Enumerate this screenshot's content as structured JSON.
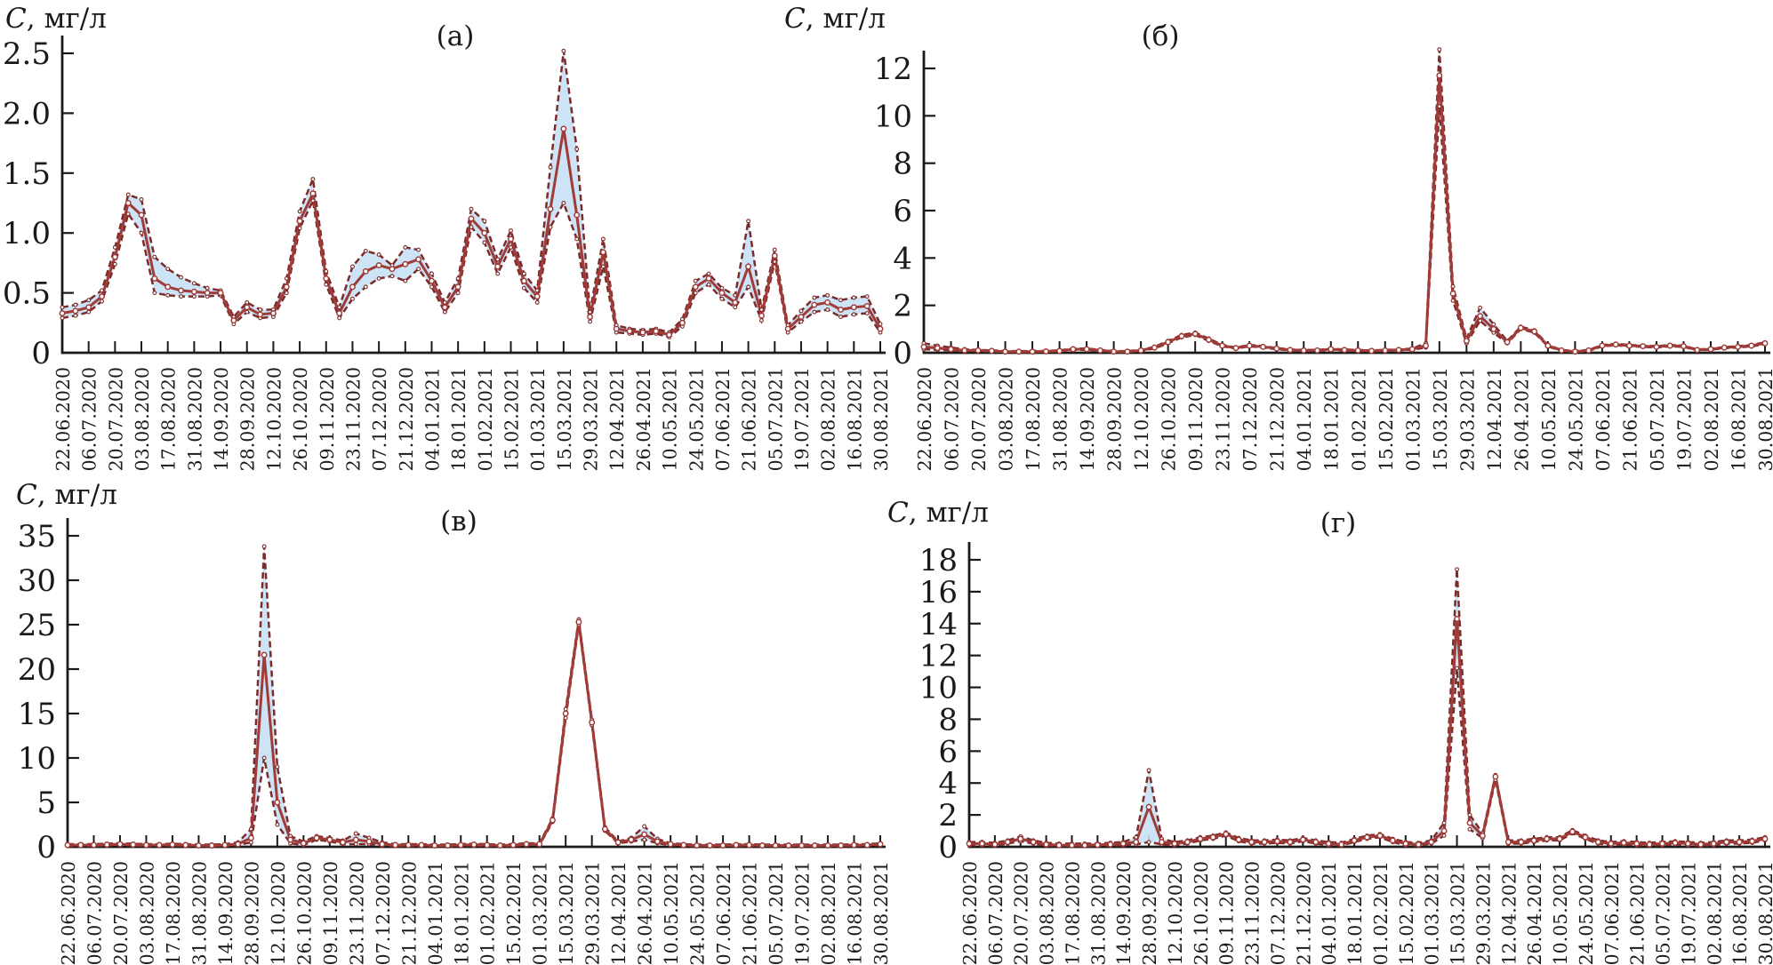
{
  "figure": {
    "ylabel_symbol": "C",
    "ylabel_unit": ", мг/л",
    "colors": {
      "line": "#a03b38",
      "bound": "#7b2b29",
      "band_fill": "#c7e1f5",
      "axis": "#1a1a1a",
      "marker_fill": "#ffffff"
    },
    "x_note": "x axis: biweekly date ticks, data points sampled weekly between ticks"
  },
  "chart_data": [
    {
      "id": "a",
      "type": "line",
      "title": "(а)",
      "ylabel": "C, мг/л",
      "ylim": [
        0,
        2.6
      ],
      "y_ticks": [
        0,
        0.5,
        1,
        1.5,
        2,
        2.5
      ],
      "y_tick_labels": [
        "0",
        "0.5",
        "1.0",
        "1.5",
        "2.0",
        "2.5"
      ],
      "x_tick_labels": [
        "22.06.2020",
        "06.07.2020",
        "20.07.2020",
        "03.08.2020",
        "17.08.2020",
        "31.08.2020",
        "14.09.2020",
        "28.09.2020",
        "12.10.2020",
        "26.10.2020",
        "09.11.2020",
        "23.11.2020",
        "07.12.2020",
        "21.12.2020",
        "04.01.2021",
        "18.01.2021",
        "01.02.2021",
        "15.02.2021",
        "01.03.2021",
        "15.03.2021",
        "29.03.2021",
        "12.04.2021",
        "26.04.2021",
        "10.05.2021",
        "24.05.2021",
        "07.06.2021",
        "21.06.2021",
        "05.07.2021",
        "19.07.2021",
        "02.08.2021",
        "16.08.2021",
        "30.08.2021"
      ],
      "series": [
        {
          "name": "model estimate",
          "values": [
            0.33,
            0.35,
            0.38,
            0.47,
            0.8,
            1.25,
            1.15,
            0.62,
            0.55,
            0.52,
            0.51,
            0.5,
            0.5,
            0.27,
            0.38,
            0.32,
            0.33,
            0.55,
            1.1,
            1.33,
            0.62,
            0.33,
            0.55,
            0.68,
            0.73,
            0.7,
            0.74,
            0.78,
            0.6,
            0.38,
            0.55,
            1.12,
            1.0,
            0.72,
            0.95,
            0.6,
            0.47,
            1.2,
            1.87,
            1.15,
            0.3,
            0.84,
            0.2,
            0.18,
            0.17,
            0.18,
            0.15,
            0.25,
            0.55,
            0.62,
            0.5,
            0.42,
            0.72,
            0.31,
            0.81,
            0.2,
            0.3,
            0.4,
            0.42,
            0.36,
            0.38,
            0.39,
            0.2
          ]
        },
        {
          "name": "upper bound (dashed)",
          "values": [
            0.38,
            0.4,
            0.44,
            0.52,
            0.88,
            1.32,
            1.28,
            0.8,
            0.7,
            0.63,
            0.58,
            0.54,
            0.52,
            0.3,
            0.42,
            0.36,
            0.36,
            0.62,
            1.18,
            1.45,
            0.68,
            0.38,
            0.72,
            0.85,
            0.82,
            0.73,
            0.88,
            0.86,
            0.66,
            0.42,
            0.62,
            1.2,
            1.1,
            0.78,
            1.02,
            0.66,
            0.52,
            1.55,
            2.52,
            1.7,
            0.34,
            0.95,
            0.23,
            0.2,
            0.19,
            0.2,
            0.17,
            0.28,
            0.6,
            0.66,
            0.54,
            0.48,
            1.1,
            0.36,
            0.86,
            0.23,
            0.35,
            0.46,
            0.48,
            0.44,
            0.46,
            0.47,
            0.24
          ]
        },
        {
          "name": "lower bound (dashed)",
          "values": [
            0.29,
            0.31,
            0.34,
            0.43,
            0.74,
            1.16,
            1.0,
            0.5,
            0.48,
            0.47,
            0.47,
            0.47,
            0.48,
            0.24,
            0.34,
            0.29,
            0.3,
            0.5,
            1.04,
            1.27,
            0.57,
            0.29,
            0.45,
            0.55,
            0.62,
            0.64,
            0.6,
            0.7,
            0.55,
            0.34,
            0.5,
            1.05,
            0.92,
            0.66,
            0.88,
            0.54,
            0.42,
            1.05,
            1.25,
            0.95,
            0.26,
            0.72,
            0.17,
            0.16,
            0.15,
            0.16,
            0.13,
            0.22,
            0.5,
            0.57,
            0.45,
            0.38,
            0.55,
            0.27,
            0.76,
            0.17,
            0.26,
            0.34,
            0.36,
            0.3,
            0.32,
            0.33,
            0.17
          ]
        }
      ]
    },
    {
      "id": "b",
      "type": "line",
      "title": "(б)",
      "ylabel": "C, мг/л",
      "ylim": [
        0,
        13
      ],
      "y_ticks": [
        0,
        2,
        4,
        6,
        8,
        10,
        12
      ],
      "y_tick_labels": [
        "0",
        "2",
        "4",
        "6",
        "8",
        "10",
        "12"
      ],
      "x_tick_labels": [
        "22.06.2020",
        "06.07.2020",
        "20.07.2020",
        "03.08.2020",
        "17.08.2020",
        "31.08.2020",
        "14.09.2020",
        "28.09.2020",
        "12.10.2020",
        "26.10.2020",
        "09.11.2020",
        "23.11.2020",
        "07.12.2020",
        "21.12.2020",
        "04.01.2021",
        "18.01.2021",
        "01.02.2021",
        "15.02.2021",
        "01.03.2021",
        "15.03.2021",
        "29.03.2021",
        "12.04.2021",
        "26.04.2021",
        "10.05.2021",
        "24.05.2021",
        "07.06.2021",
        "21.06.2021",
        "05.07.2021",
        "19.07.2021",
        "02.08.2021",
        "16.08.2021",
        "30.08.2021"
      ],
      "series": [
        {
          "name": "model estimate",
          "values": [
            0.25,
            0.2,
            0.15,
            0.1,
            0.1,
            0.08,
            0.05,
            0.05,
            0.05,
            0.06,
            0.08,
            0.15,
            0.15,
            0.1,
            0.05,
            0.05,
            0.1,
            0.22,
            0.45,
            0.7,
            0.8,
            0.55,
            0.3,
            0.2,
            0.3,
            0.25,
            0.18,
            0.12,
            0.1,
            0.1,
            0.15,
            0.12,
            0.1,
            0.08,
            0.1,
            0.12,
            0.15,
            0.3,
            11.7,
            2.5,
            0.5,
            1.55,
            1.0,
            0.45,
            1.05,
            0.9,
            0.3,
            0.1,
            0.05,
            0.1,
            0.3,
            0.35,
            0.3,
            0.28,
            0.25,
            0.3,
            0.28,
            0.12,
            0.15,
            0.22,
            0.25,
            0.3,
            0.4
          ]
        },
        {
          "name": "upper bound (dashed)",
          "values": [
            0.4,
            0.3,
            0.22,
            0.15,
            0.12,
            0.1,
            0.07,
            0.07,
            0.07,
            0.08,
            0.1,
            0.18,
            0.18,
            0.12,
            0.07,
            0.07,
            0.12,
            0.25,
            0.5,
            0.75,
            0.85,
            0.6,
            0.33,
            0.22,
            0.33,
            0.28,
            0.2,
            0.14,
            0.12,
            0.12,
            0.17,
            0.14,
            0.12,
            0.1,
            0.12,
            0.14,
            0.18,
            0.4,
            12.8,
            2.8,
            0.6,
            1.9,
            1.2,
            0.5,
            1.1,
            0.95,
            0.33,
            0.12,
            0.07,
            0.12,
            0.33,
            0.38,
            0.33,
            0.3,
            0.28,
            0.33,
            0.3,
            0.14,
            0.17,
            0.24,
            0.28,
            0.33,
            0.44
          ]
        },
        {
          "name": "lower bound (dashed)",
          "values": [
            0.15,
            0.12,
            0.1,
            0.07,
            0.07,
            0.06,
            0.03,
            0.03,
            0.03,
            0.04,
            0.06,
            0.12,
            0.12,
            0.08,
            0.03,
            0.03,
            0.08,
            0.18,
            0.4,
            0.65,
            0.75,
            0.5,
            0.27,
            0.18,
            0.27,
            0.22,
            0.15,
            0.1,
            0.08,
            0.08,
            0.13,
            0.1,
            0.08,
            0.06,
            0.08,
            0.1,
            0.13,
            0.22,
            10.4,
            2.2,
            0.4,
            1.35,
            0.85,
            0.4,
            1.0,
            0.85,
            0.27,
            0.08,
            0.03,
            0.08,
            0.27,
            0.32,
            0.27,
            0.25,
            0.22,
            0.27,
            0.25,
            0.1,
            0.13,
            0.2,
            0.22,
            0.27,
            0.36
          ]
        }
      ]
    },
    {
      "id": "v",
      "type": "line",
      "title": "(в)",
      "ylabel": "C, мг/л",
      "ylim": [
        0,
        35
      ],
      "y_ticks": [
        0,
        5,
        10,
        15,
        20,
        25,
        30,
        35
      ],
      "y_tick_labels": [
        "0",
        "5",
        "10",
        "15",
        "20",
        "25",
        "30",
        "35"
      ],
      "x_tick_labels": [
        "22.06.2020",
        "06.07.2020",
        "20.07.2020",
        "03.08.2020",
        "17.08.2020",
        "31.08.2020",
        "14.09.2020",
        "28.09.2020",
        "12.10.2020",
        "26.10.2020",
        "09.11.2020",
        "23.11.2020",
        "07.12.2020",
        "21.12.2020",
        "04.01.2021",
        "18.01.2021",
        "01.02.2021",
        "15.02.2021",
        "01.03.2021",
        "15.03.2021",
        "29.03.2021",
        "12.04.2021",
        "26.04.2021",
        "10.05.2021",
        "24.05.2021",
        "07.06.2021",
        "21.06.2021",
        "05.07.2021",
        "19.07.2021",
        "02.08.2021",
        "16.08.2021",
        "30.08.2021"
      ],
      "series": [
        {
          "name": "model estimate",
          "values": [
            0.2,
            0.2,
            0.2,
            0.25,
            0.3,
            0.25,
            0.2,
            0.2,
            0.25,
            0.2,
            0.15,
            0.15,
            0.2,
            0.3,
            1.0,
            21.6,
            5.0,
            0.8,
            0.4,
            1.0,
            0.8,
            0.5,
            0.8,
            0.6,
            0.3,
            0.2,
            0.2,
            0.2,
            0.15,
            0.15,
            0.2,
            0.25,
            0.2,
            0.15,
            0.2,
            0.3,
            0.3,
            3.0,
            15.0,
            25.3,
            14.0,
            2.0,
            0.5,
            0.8,
            1.4,
            0.6,
            0.3,
            0.2,
            0.15,
            0.15,
            0.15,
            0.2,
            0.2,
            0.15,
            0.15,
            0.15,
            0.15,
            0.15,
            0.15,
            0.15,
            0.2,
            0.2,
            0.3
          ]
        },
        {
          "name": "upper bound (dashed)",
          "values": [
            0.3,
            0.3,
            0.3,
            0.35,
            0.4,
            0.35,
            0.3,
            0.3,
            0.35,
            0.3,
            0.25,
            0.25,
            0.3,
            0.5,
            2.0,
            33.8,
            9.0,
            1.2,
            0.6,
            1.2,
            1.0,
            0.7,
            1.5,
            1.0,
            0.5,
            0.3,
            0.3,
            0.3,
            0.25,
            0.25,
            0.3,
            0.35,
            0.3,
            0.25,
            0.3,
            0.4,
            0.4,
            3.2,
            15.5,
            25.6,
            14.3,
            2.2,
            0.6,
            1.0,
            2.3,
            0.9,
            0.4,
            0.3,
            0.25,
            0.25,
            0.25,
            0.3,
            0.3,
            0.25,
            0.25,
            0.25,
            0.25,
            0.25,
            0.25,
            0.25,
            0.3,
            0.3,
            0.4
          ]
        },
        {
          "name": "lower bound (dashed)",
          "values": [
            0.1,
            0.1,
            0.1,
            0.15,
            0.2,
            0.15,
            0.1,
            0.1,
            0.15,
            0.1,
            0.08,
            0.08,
            0.1,
            0.2,
            0.5,
            10.0,
            2.5,
            0.4,
            0.2,
            0.8,
            0.6,
            0.3,
            0.3,
            0.3,
            0.15,
            0.1,
            0.1,
            0.1,
            0.08,
            0.08,
            0.1,
            0.15,
            0.1,
            0.08,
            0.1,
            0.2,
            0.2,
            2.8,
            14.5,
            25.0,
            13.7,
            1.8,
            0.4,
            0.6,
            0.8,
            0.4,
            0.2,
            0.1,
            0.08,
            0.08,
            0.08,
            0.1,
            0.1,
            0.08,
            0.08,
            0.08,
            0.08,
            0.08,
            0.08,
            0.08,
            0.1,
            0.1,
            0.2
          ]
        }
      ]
    },
    {
      "id": "g",
      "type": "line",
      "title": "(г)",
      "ylabel": "C, мг/л",
      "ylim": [
        0,
        18
      ],
      "y_ticks": [
        0,
        2,
        4,
        6,
        8,
        10,
        12,
        14,
        16,
        18
      ],
      "y_tick_labels": [
        "0",
        "2",
        "4",
        "6",
        "8",
        "10",
        "12",
        "14",
        "16",
        "18"
      ],
      "x_tick_labels": [
        "22.06.2020",
        "06.07.2020",
        "20.07.2020",
        "03.08.2020",
        "17.08.2020",
        "31.08.2020",
        "14.09.2020",
        "28.09.2020",
        "12.10.2020",
        "26.10.2020",
        "09.11.2020",
        "23.11.2020",
        "07.12.2020",
        "21.12.2020",
        "04.01.2021",
        "18.01.2021",
        "01.02.2021",
        "15.02.2021",
        "01.03.2021",
        "15.03.2021",
        "29.03.2021",
        "12.04.2021",
        "26.04.2021",
        "10.05.2021",
        "24.05.2021",
        "07.06.2021",
        "21.06.2021",
        "05.07.2021",
        "19.07.2021",
        "02.08.2021",
        "16.08.2021",
        "30.08.2021"
      ],
      "series": [
        {
          "name": "model estimate",
          "values": [
            0.2,
            0.2,
            0.15,
            0.3,
            0.5,
            0.3,
            0.15,
            0.1,
            0.1,
            0.1,
            0.12,
            0.15,
            0.2,
            0.3,
            2.5,
            0.3,
            0.2,
            0.3,
            0.5,
            0.6,
            0.8,
            0.45,
            0.3,
            0.3,
            0.35,
            0.3,
            0.45,
            0.3,
            0.2,
            0.15,
            0.4,
            0.6,
            0.7,
            0.4,
            0.2,
            0.15,
            0.3,
            1.0,
            14.3,
            1.5,
            0.7,
            4.4,
            0.3,
            0.3,
            0.4,
            0.5,
            0.5,
            0.95,
            0.6,
            0.3,
            0.2,
            0.25,
            0.2,
            0.15,
            0.2,
            0.25,
            0.2,
            0.15,
            0.2,
            0.3,
            0.3,
            0.35,
            0.5
          ]
        },
        {
          "name": "upper bound (dashed)",
          "values": [
            0.3,
            0.3,
            0.25,
            0.4,
            0.65,
            0.4,
            0.25,
            0.2,
            0.2,
            0.2,
            0.2,
            0.25,
            0.3,
            0.6,
            4.8,
            0.5,
            0.3,
            0.4,
            0.6,
            0.7,
            0.9,
            0.55,
            0.4,
            0.4,
            0.45,
            0.4,
            0.55,
            0.4,
            0.3,
            0.25,
            0.5,
            0.7,
            0.8,
            0.5,
            0.3,
            0.25,
            0.4,
            1.5,
            17.4,
            2.0,
            0.85,
            4.5,
            0.4,
            0.4,
            0.5,
            0.6,
            0.6,
            1.05,
            0.7,
            0.4,
            0.3,
            0.35,
            0.3,
            0.25,
            0.3,
            0.35,
            0.3,
            0.25,
            0.3,
            0.4,
            0.4,
            0.45,
            0.6
          ]
        },
        {
          "name": "lower bound (dashed)",
          "values": [
            0.1,
            0.1,
            0.08,
            0.2,
            0.35,
            0.2,
            0.08,
            0.05,
            0.05,
            0.05,
            0.06,
            0.08,
            0.1,
            0.15,
            0.3,
            0.15,
            0.1,
            0.2,
            0.4,
            0.5,
            0.7,
            0.35,
            0.2,
            0.2,
            0.25,
            0.2,
            0.35,
            0.2,
            0.1,
            0.08,
            0.3,
            0.5,
            0.6,
            0.3,
            0.1,
            0.08,
            0.2,
            0.7,
            11.2,
            1.1,
            0.55,
            4.2,
            0.2,
            0.2,
            0.3,
            0.4,
            0.4,
            0.85,
            0.5,
            0.2,
            0.1,
            0.15,
            0.1,
            0.08,
            0.1,
            0.15,
            0.1,
            0.08,
            0.1,
            0.2,
            0.2,
            0.25,
            0.4
          ]
        }
      ]
    }
  ]
}
